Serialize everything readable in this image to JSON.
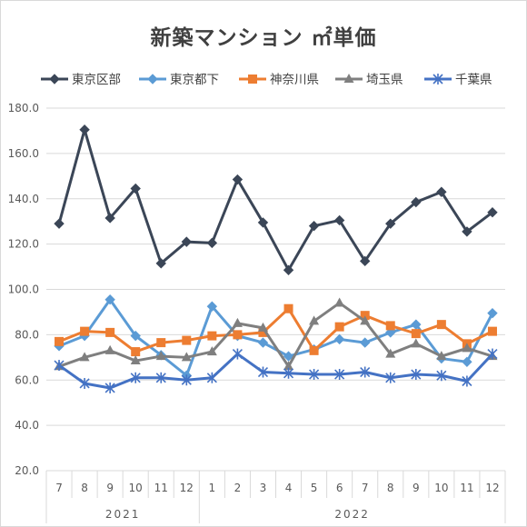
{
  "chart_data": {
    "type": "line",
    "title": "新築マンション ㎡単価",
    "categories": [
      "7",
      "8",
      "9",
      "10",
      "11",
      "12",
      "1",
      "2",
      "3",
      "4",
      "5",
      "6",
      "7",
      "8",
      "9",
      "10",
      "11",
      "12"
    ],
    "year_groups": [
      {
        "label": "2021",
        "count": 6
      },
      {
        "label": "2022",
        "count": 12
      }
    ],
    "ylim": [
      20.0,
      180.0
    ],
    "yticks": [
      "20.0",
      "40.0",
      "60.0",
      "80.0",
      "100.0",
      "120.0",
      "140.0",
      "160.0",
      "180.0"
    ],
    "grid": "horizontal",
    "legend_position": "top",
    "series": [
      {
        "name": "東京区部",
        "color": "#3b4657",
        "marker": "diamond",
        "values": [
          129,
          170.5,
          131.5,
          144.5,
          111.5,
          121,
          120.5,
          148.5,
          129.5,
          108.5,
          128,
          130.5,
          112.5,
          129,
          138.5,
          143,
          125.5,
          134
        ]
      },
      {
        "name": "東京都下",
        "color": "#5b9bd5",
        "marker": "diamond",
        "values": [
          75,
          79.5,
          95.5,
          79.5,
          71,
          62,
          92.5,
          79.5,
          76.5,
          70.5,
          73.5,
          78,
          76.5,
          81,
          84.5,
          69.5,
          68,
          89.5
        ]
      },
      {
        "name": "神奈川県",
        "color": "#ed7d31",
        "marker": "square",
        "values": [
          77,
          81.5,
          81,
          72.5,
          76.5,
          77.5,
          79.5,
          80,
          81,
          91.5,
          73,
          83.5,
          88.5,
          84,
          80.5,
          84.5,
          76,
          81.5
        ]
      },
      {
        "name": "埼玉県",
        "color": "#7f7f7f",
        "marker": "triangle",
        "values": [
          66,
          70,
          73,
          68.5,
          70.5,
          70,
          72.5,
          85,
          83,
          66,
          86,
          94,
          86,
          71.5,
          76,
          70.5,
          74,
          70.5
        ]
      },
      {
        "name": "千葉県",
        "color": "#4472c4",
        "marker": "asterisk",
        "values": [
          66.5,
          58.5,
          56.5,
          61,
          61,
          60,
          61,
          71.5,
          63.5,
          63,
          62.5,
          62.5,
          63.5,
          61,
          62.5,
          62,
          59.5,
          71.5
        ]
      }
    ]
  }
}
